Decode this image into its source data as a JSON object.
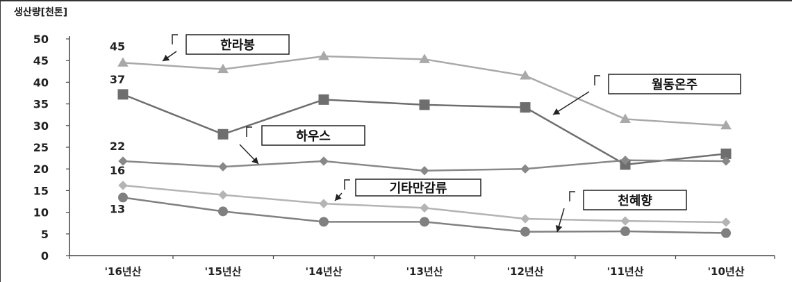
{
  "chart_data": {
    "type": "line",
    "title": "",
    "ylabel": "생산량[천톤]",
    "xlabel": "",
    "ylim": [
      0,
      50
    ],
    "yticks": [
      0,
      5,
      10,
      15,
      20,
      25,
      30,
      35,
      40,
      45,
      50
    ],
    "categories": [
      "'16년산",
      "'15년산",
      "'14년산",
      "'13년산",
      "'12년산",
      "'11년산",
      "'10년산"
    ],
    "series": [
      {
        "name": "한라봉",
        "marker": "triangle",
        "color": "#a9a9a9",
        "values": [
          44.5,
          43,
          46,
          45.3,
          41.5,
          31.5,
          30
        ]
      },
      {
        "name": "월동온주",
        "marker": "square",
        "color": "#6e6e6e",
        "values": [
          37.2,
          28,
          36,
          34.8,
          34.2,
          21,
          23.5
        ]
      },
      {
        "name": "하우스",
        "marker": "diamond",
        "color": "#888888",
        "values": [
          21.8,
          20.5,
          21.8,
          19.6,
          20,
          22,
          21.8
        ]
      },
      {
        "name": "기타만감류",
        "marker": "diamond",
        "color": "#b4b4b4",
        "values": [
          16.2,
          14,
          12,
          11,
          8.5,
          8,
          7.7
        ]
      },
      {
        "name": "천혜향",
        "marker": "circle",
        "color": "#808080",
        "values": [
          13.4,
          10.2,
          7.8,
          7.8,
          5.5,
          5.6,
          5.2
        ]
      }
    ],
    "data_labels": [
      {
        "series": 0,
        "index": 0,
        "text": "45"
      },
      {
        "series": 1,
        "index": 0,
        "text": "37"
      },
      {
        "series": 2,
        "index": 0,
        "text": "22"
      },
      {
        "series": 3,
        "index": 0,
        "text": "16"
      },
      {
        "series": 4,
        "index": 0,
        "text": "13"
      }
    ],
    "grid": false,
    "legend": "callout labels with arrows"
  }
}
